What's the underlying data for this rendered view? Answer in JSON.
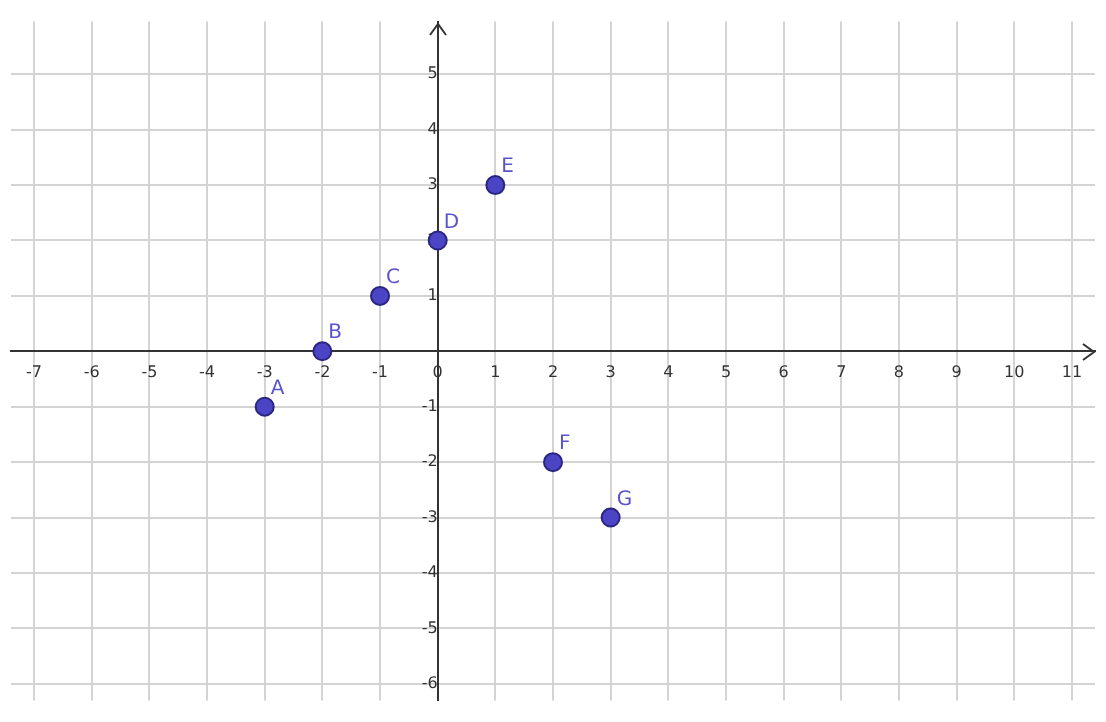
{
  "chart_data": {
    "type": "scatter",
    "x": [
      -3,
      -2,
      -1,
      0,
      1,
      2,
      3
    ],
    "values": [
      -1,
      0,
      1,
      2,
      3,
      -2,
      -3
    ],
    "color": "#4b44c4",
    "xlim": [
      -7.4,
      11.4
    ],
    "ylim": [
      -6.3,
      5.95
    ],
    "xticks": [
      -7,
      -6,
      -5,
      -4,
      -3,
      -2,
      -1,
      0,
      1,
      2,
      3,
      4,
      5,
      6,
      7,
      8,
      9,
      10,
      11
    ],
    "yticks": [
      -6,
      -5,
      -4,
      -3,
      -2,
      -1,
      1,
      2,
      3,
      4,
      5
    ],
    "grid": true,
    "marker": "circle",
    "annotations": [
      {
        "text": "A",
        "x": -3,
        "y": -1
      },
      {
        "text": "B",
        "x": -2,
        "y": 0
      },
      {
        "text": "C",
        "x": -1,
        "y": 1
      },
      {
        "text": "D",
        "x": 0,
        "y": 2
      },
      {
        "text": "E",
        "x": 1,
        "y": 3
      },
      {
        "text": "F",
        "x": 2,
        "y": -2
      },
      {
        "text": "G",
        "x": 3,
        "y": -3
      }
    ]
  }
}
